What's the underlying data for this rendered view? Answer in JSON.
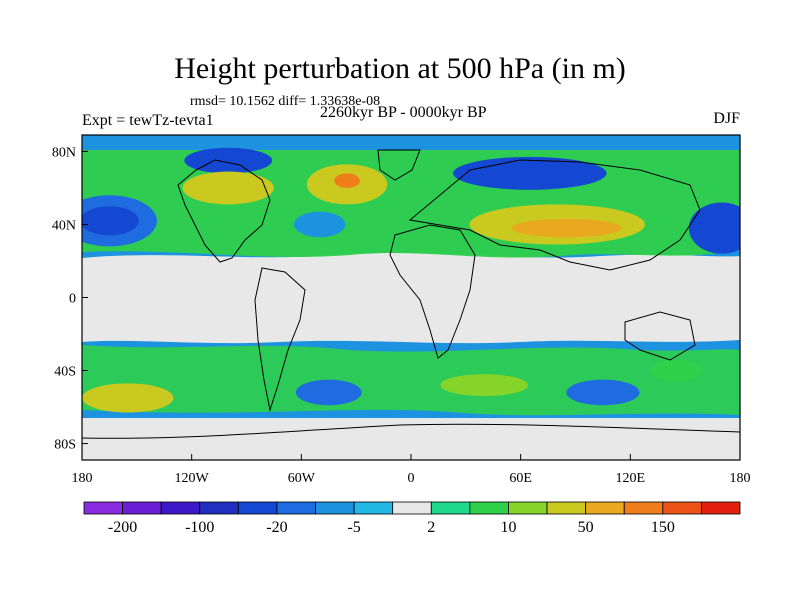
{
  "title": "Height perturbation at 500 hPa (in m)",
  "stats_line": "rmsd= 10.1562 diff= 1.33638e-08",
  "experiment": "Expt = tewTz-tevta1",
  "period": "2260kyr BP - 0000kyr BP",
  "season": "DJF",
  "lat_ticks": [
    {
      "label": "80N",
      "lat": 80
    },
    {
      "label": "40N",
      "lat": 40
    },
    {
      "label": "0",
      "lat": 0
    },
    {
      "label": "40S",
      "lat": -40
    },
    {
      "label": "80S",
      "lat": -80
    }
  ],
  "lon_ticks": [
    {
      "label": "180",
      "lon": -180
    },
    {
      "label": "120W",
      "lon": -120
    },
    {
      "label": "60W",
      "lon": -60
    },
    {
      "label": "0",
      "lon": 0
    },
    {
      "label": "60E",
      "lon": 60
    },
    {
      "label": "120E",
      "lon": 120
    },
    {
      "label": "180",
      "lon": 180
    }
  ],
  "colorbar": {
    "colors": [
      "#8a2be2",
      "#6a1fd6",
      "#3c18c8",
      "#1f2fbf",
      "#1447d2",
      "#1e6cdf",
      "#1d93e0",
      "#22b8e6",
      "#e8e8e8",
      "#1ed88c",
      "#2fd04a",
      "#86d42a",
      "#c9c920",
      "#e8a820",
      "#ee7d1a",
      "#ec5216",
      "#e3200f"
    ],
    "labels": [
      "-200",
      "-100",
      "-20",
      "-5",
      "2",
      "10",
      "50",
      "150"
    ]
  },
  "regions": [
    {
      "name": "n-pacific-low",
      "lon": -165,
      "lat": 42,
      "rlon": 26,
      "rlat": 14,
      "color": "#1e6cdf"
    },
    {
      "name": "n-pacific-low-core",
      "lon": -165,
      "lat": 42,
      "rlon": 16,
      "rlat": 8,
      "color": "#1447d2"
    },
    {
      "name": "arctic-canada-low",
      "lon": -100,
      "lat": 75,
      "rlon": 24,
      "rlat": 7,
      "color": "#1447d2"
    },
    {
      "name": "n-america-high",
      "lon": -100,
      "lat": 60,
      "rlon": 25,
      "rlat": 9,
      "color": "#c9c920"
    },
    {
      "name": "n-atlantic-high",
      "lon": -35,
      "lat": 62,
      "rlon": 22,
      "rlat": 11,
      "color": "#c9c920"
    },
    {
      "name": "n-atlantic-high-core",
      "lon": -35,
      "lat": 64,
      "rlon": 7,
      "rlat": 4,
      "color": "#ee7d1a"
    },
    {
      "name": "atlantic-low",
      "lon": -50,
      "lat": 40,
      "rlon": 14,
      "rlat": 7,
      "color": "#1d93e0"
    },
    {
      "name": "siberia-low",
      "lon": 65,
      "lat": 68,
      "rlon": 42,
      "rlat": 9,
      "color": "#1447d2"
    },
    {
      "name": "asia-high",
      "lon": 80,
      "lat": 40,
      "rlon": 48,
      "rlat": 11,
      "color": "#c9c920"
    },
    {
      "name": "asia-high-core",
      "lon": 85,
      "lat": 38,
      "rlon": 30,
      "rlat": 5,
      "color": "#e8a820"
    },
    {
      "name": "w-pacific-low",
      "lon": 170,
      "lat": 38,
      "rlon": 18,
      "rlat": 14,
      "color": "#1447d2"
    },
    {
      "name": "s-pacific-high",
      "lon": -155,
      "lat": -55,
      "rlon": 25,
      "rlat": 8,
      "color": "#c9c920"
    },
    {
      "name": "s-atlantic-low",
      "lon": -45,
      "lat": -52,
      "rlon": 18,
      "rlat": 7,
      "color": "#1e6cdf"
    },
    {
      "name": "s-indian-high",
      "lon": 40,
      "lat": -48,
      "rlon": 24,
      "rlat": 6,
      "color": "#86d42a"
    },
    {
      "name": "s-indian-low",
      "lon": 105,
      "lat": -52,
      "rlon": 20,
      "rlat": 7,
      "color": "#1e6cdf"
    },
    {
      "name": "australia-high",
      "lon": 145,
      "lat": -40,
      "rlon": 14,
      "rlat": 6,
      "color": "#2fd04a"
    }
  ]
}
